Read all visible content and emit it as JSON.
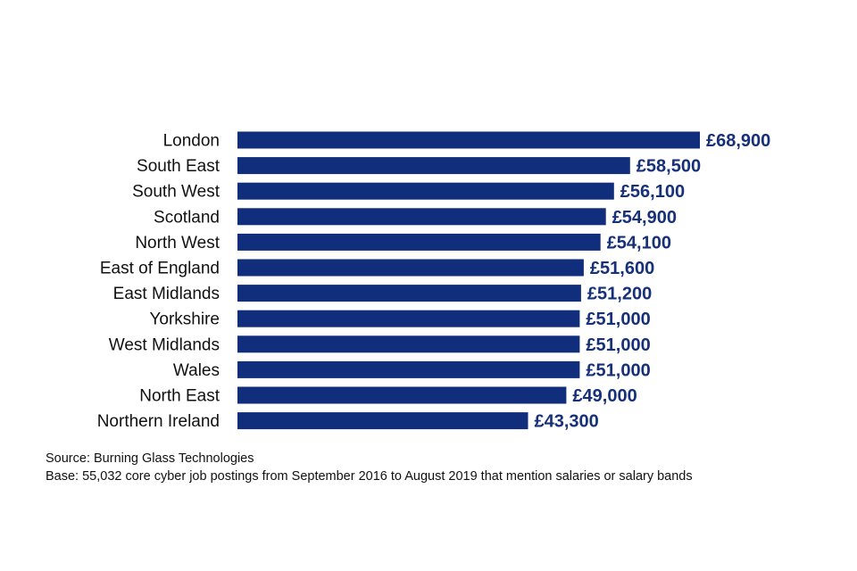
{
  "colors": {
    "bar": "#102e7c",
    "value_text": "#16307a",
    "label_text": "#111111"
  },
  "chart_data": {
    "type": "bar",
    "orientation": "horizontal",
    "categories": [
      "London",
      "South East",
      "South West",
      "Scotland",
      "North West",
      "East of England",
      "East Midlands",
      "Yorkshire",
      "West Midlands",
      "Wales",
      "North East",
      "Northern Ireland"
    ],
    "values": [
      68900,
      58500,
      56100,
      54900,
      54100,
      51600,
      51200,
      51000,
      51000,
      51000,
      49000,
      43300
    ],
    "value_labels": [
      "£68,900",
      "£58,500",
      "£56,100",
      "£54,900",
      "£54,100",
      "£51,600",
      "£51,200",
      "£51,000",
      "£51,000",
      "£51,000",
      "£49,000",
      "£43,300"
    ],
    "title": "",
    "xlabel": "",
    "ylabel": "",
    "xlim": [
      0,
      68900
    ],
    "grid": false,
    "legend": "none"
  },
  "notes": {
    "source": "Source: Burning Glass Technologies",
    "base": "Base: 55,032 core cyber job postings from September 2016 to August 2019 that mention salaries or salary bands"
  }
}
